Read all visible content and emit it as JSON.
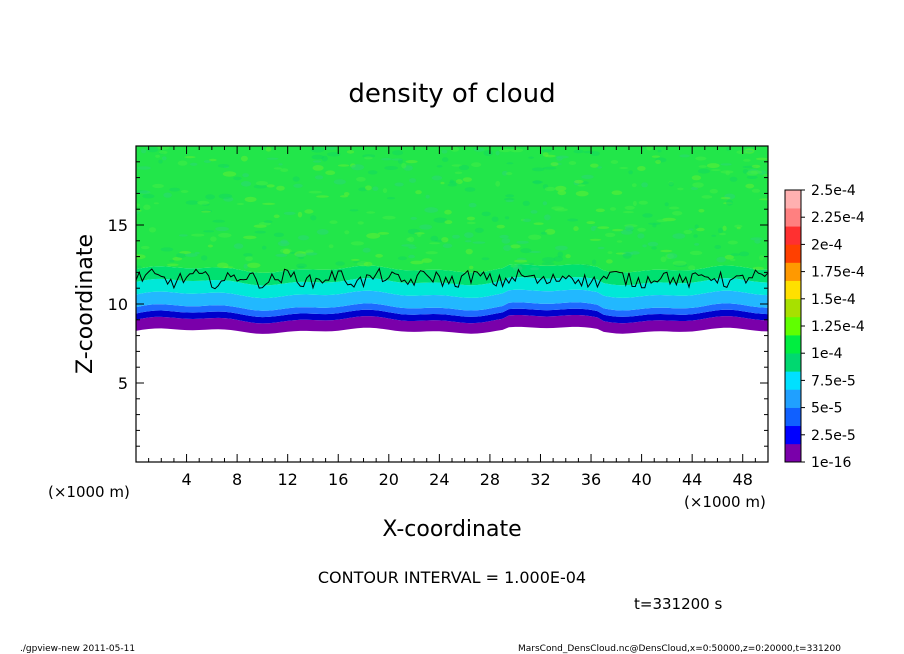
{
  "chart_data": {
    "type": "heatmap",
    "title": "density of cloud",
    "xlabel": "X-coordinate",
    "ylabel": "Z-coordinate",
    "x_unit": "(×1000 m)",
    "y_unit": "(×1000 m)",
    "xlim": [
      0,
      50
    ],
    "ylim": [
      0,
      20
    ],
    "x_ticks": [
      4,
      8,
      12,
      16,
      20,
      24,
      28,
      32,
      36,
      40,
      44,
      48
    ],
    "y_ticks": [
      5,
      10,
      15
    ],
    "colorbar": {
      "levels": [
        "1e-16",
        "2.5e-5",
        "5e-5",
        "7.5e-5",
        "1e-4",
        "1.25e-4",
        "1.5e-4",
        "1.75e-4",
        "2e-4",
        "2.25e-4",
        "2.5e-4"
      ],
      "colors": [
        "#7a00aa",
        "#0000ff",
        "#1060ff",
        "#20a0ff",
        "#00e0ff",
        "#00d870",
        "#00ee40",
        "#60ff00",
        "#a8e000",
        "#ffe000",
        "#ff9900",
        "#ff4000",
        "#ff3030",
        "#ff8080",
        "#ffb0b0"
      ]
    },
    "layers": [
      {
        "z_bottom": 8.3,
        "z_top": 9.0,
        "color": "#7a00aa"
      },
      {
        "z_bottom": 9.0,
        "z_top": 9.4,
        "color": "#0000cc"
      },
      {
        "z_bottom": 9.4,
        "z_top": 9.8,
        "color": "#1e6bff"
      },
      {
        "z_bottom": 9.8,
        "z_top": 10.6,
        "color": "#22b8ff"
      },
      {
        "z_bottom": 10.6,
        "z_top": 11.4,
        "color": "#00e8d8"
      },
      {
        "z_bottom": 11.4,
        "z_top": 12.2,
        "color": "#00e070"
      },
      {
        "z_bottom": 12.2,
        "z_top": 20.0,
        "color": "#22e64a"
      }
    ],
    "contour_interval": "1.000E-04",
    "contour_level_z": 11.6,
    "time": "t=331200 s"
  },
  "texts": {
    "title": "density of cloud",
    "xlabel": "X-coordinate",
    "ylabel": "Z-coordinate",
    "x_unit": "(×1000 m)",
    "y_unit": "(×1000 m)",
    "contour_label": "CONTOUR INTERVAL = 1.000E-04",
    "time": "t=331200 s",
    "footer_left": "./gpview-new   2011-05-11",
    "footer_right": "MarsCond_DensCloud.nc@DensCloud,x=0:50000,z=0:20000,t=331200"
  }
}
